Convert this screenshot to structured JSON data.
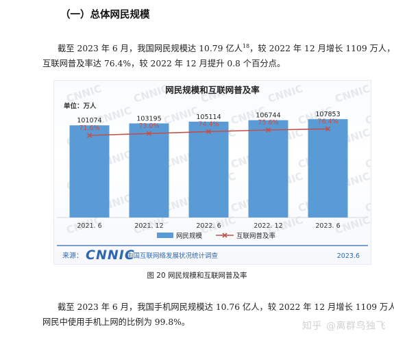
{
  "section_heading": "（一）总体网民规模",
  "intro_paragraph": {
    "line1_before_sup": "截至 2023 年 6 月，我国网民规模达 10.79 亿人",
    "footnote": "18",
    "line1_after_sup": "，较 2022 年 12 月增长 1109 万人，",
    "line2": "互联网普及率达 76.4%，较 2022 年 12 月提升 0.8 个百分点。"
  },
  "colors": {
    "bar": "#5b9bd5",
    "line": "#c0504d",
    "text": "#222222",
    "label_red": "#c0504d",
    "watermark": "#d4d9e0",
    "logo_blue": "#2f68b0",
    "footer_line": "#2f68b0"
  },
  "chart_data": {
    "type": "bar",
    "title": "网民规模和互联网普及率",
    "unit_label": "单位：万人",
    "categories": [
      "2021. 6",
      "2021. 12",
      "2022. 6",
      "2022. 12",
      "2023. 6"
    ],
    "series": [
      {
        "name": "网民规模",
        "type": "bar",
        "values": [
          101074,
          103195,
          105114,
          106744,
          107853
        ]
      },
      {
        "name": "互联网普及率",
        "type": "line",
        "values": [
          71.6,
          73.0,
          74.4,
          75.6,
          76.4
        ],
        "labels": [
          "71.6%",
          "73.0%",
          "74.4%",
          "75.6%",
          "76.4%"
        ],
        "marker": "x"
      }
    ],
    "ylim": [
      0,
      120000
    ],
    "legend_position": "bottom",
    "grid": false,
    "watermark_text": "CNNIC",
    "source_label": "来源：",
    "source_logo": "CNNIC",
    "source_org": "中国互联网络发展状况统计调查",
    "source_date": "2023.6"
  },
  "figure_caption": "图 20  网民规模和互联网普及率",
  "mobile_paragraph": {
    "line1": "截至 2023 年 6 月，我国手机网民规模达 10.76 亿人，较 2022 年 12 月增长 1109 万人，",
    "line2": "网民中使用手机上网的比例为 99.8%。"
  },
  "zhihu_watermark": {
    "brand": "知乎",
    "author": "@离群鸟独飞"
  }
}
